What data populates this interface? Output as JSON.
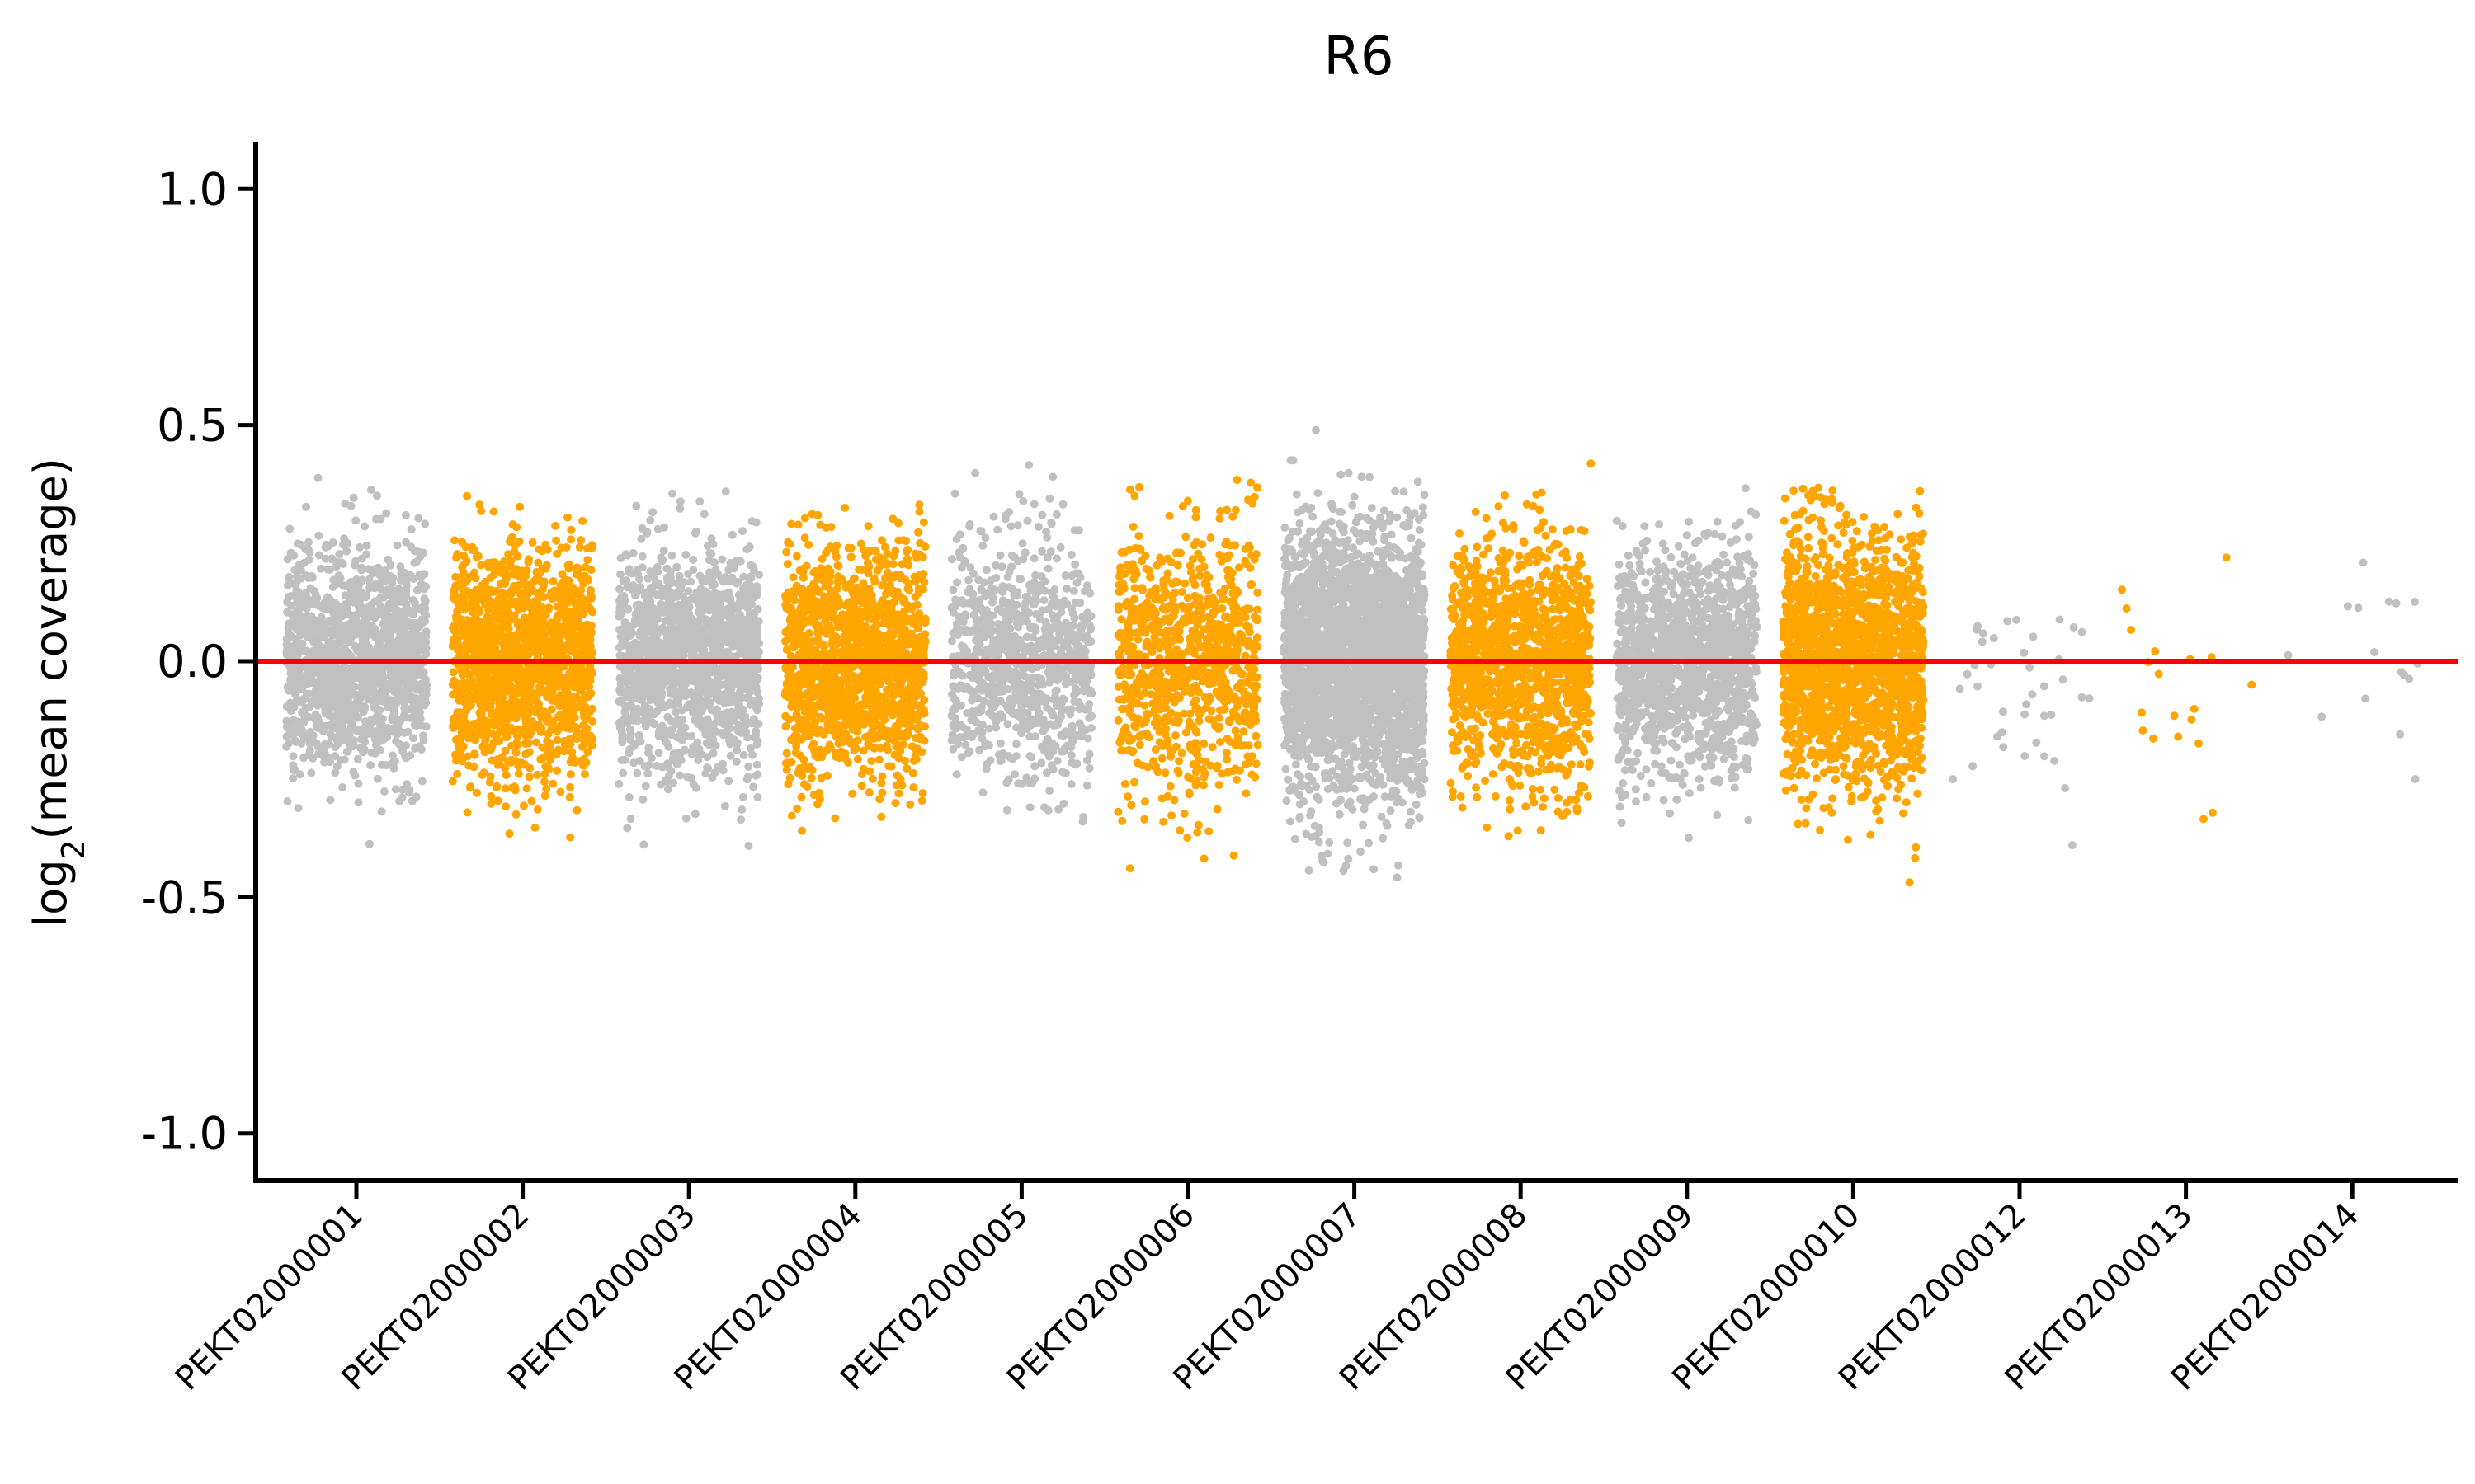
{
  "chart_data": {
    "type": "scatter",
    "title": "R6",
    "xlabel": "",
    "ylabel": "log2(mean coverage)",
    "ylabel_parts": {
      "base": "log",
      "subscript": "2",
      "rest": "(mean coverage)"
    },
    "ylim": [
      -1.1,
      1.1
    ],
    "yticks": [
      1.0,
      0.5,
      0.0,
      -0.5,
      -1.0
    ],
    "ytick_labels": [
      "1.0",
      "0.5",
      "0.0",
      "-0.5",
      "-1.0"
    ],
    "grid": false,
    "legend": "none",
    "reference_line": {
      "y": 0.0,
      "color": "#ff0000"
    },
    "colors": {
      "gray": "#c0c0c0",
      "orange": "#ffa500",
      "axis": "#000000"
    },
    "categories": [
      "PEKT02000001",
      "PEKT02000002",
      "PEKT02000003",
      "PEKT02000004",
      "PEKT02000005",
      "PEKT02000006",
      "PEKT02000007",
      "PEKT02000008",
      "PEKT02000009",
      "PEKT02000010",
      "PEKT02000012",
      "PEKT02000013",
      "PEKT02000014"
    ],
    "series": [
      {
        "category": "PEKT02000001",
        "color": "gray",
        "n_points": 1400,
        "center": 0.0,
        "spread": 0.12,
        "min": -0.42,
        "max": 0.43
      },
      {
        "category": "PEKT02000002",
        "color": "orange",
        "n_points": 1500,
        "center": 0.0,
        "spread": 0.12,
        "min": -0.42,
        "max": 0.36
      },
      {
        "category": "PEKT02000003",
        "color": "gray",
        "n_points": 1400,
        "center": 0.0,
        "spread": 0.12,
        "min": -0.44,
        "max": 0.36
      },
      {
        "category": "PEKT02000004",
        "color": "orange",
        "n_points": 1400,
        "center": 0.0,
        "spread": 0.12,
        "min": -0.41,
        "max": 0.36
      },
      {
        "category": "PEKT02000005",
        "color": "gray",
        "n_points": 900,
        "center": 0.0,
        "spread": 0.13,
        "min": -0.35,
        "max": 0.49
      },
      {
        "category": "PEKT02000006",
        "color": "orange",
        "n_points": 900,
        "center": 0.0,
        "spread": 0.14,
        "min": -0.5,
        "max": 0.39
      },
      {
        "category": "PEKT02000007",
        "color": "gray",
        "n_points": 2800,
        "center": 0.0,
        "spread": 0.14,
        "min": -0.63,
        "max": 0.51
      },
      {
        "category": "PEKT02000008",
        "color": "orange",
        "n_points": 1300,
        "center": 0.0,
        "spread": 0.13,
        "min": -0.43,
        "max": 0.42
      },
      {
        "category": "PEKT02000009",
        "color": "gray",
        "n_points": 1300,
        "center": 0.0,
        "spread": 0.12,
        "min": -0.51,
        "max": 0.39
      },
      {
        "category": "PEKT02000010",
        "color": "orange",
        "n_points": 1800,
        "center": 0.0,
        "spread": 0.13,
        "min": -0.5,
        "max": 0.37
      },
      {
        "category": "PEKT02000012",
        "color": "gray",
        "n_points": 40,
        "center": -0.05,
        "spread": 0.15,
        "min": -0.47,
        "max": 0.09
      },
      {
        "category": "PEKT02000013",
        "color": "orange",
        "n_points": 20,
        "center": -0.05,
        "spread": 0.15,
        "min": -0.47,
        "max": 0.22
      },
      {
        "category": "PEKT02000014",
        "color": "gray",
        "n_points": 16,
        "center": 0.0,
        "spread": 0.1,
        "min": -0.29,
        "max": 0.22
      }
    ]
  }
}
